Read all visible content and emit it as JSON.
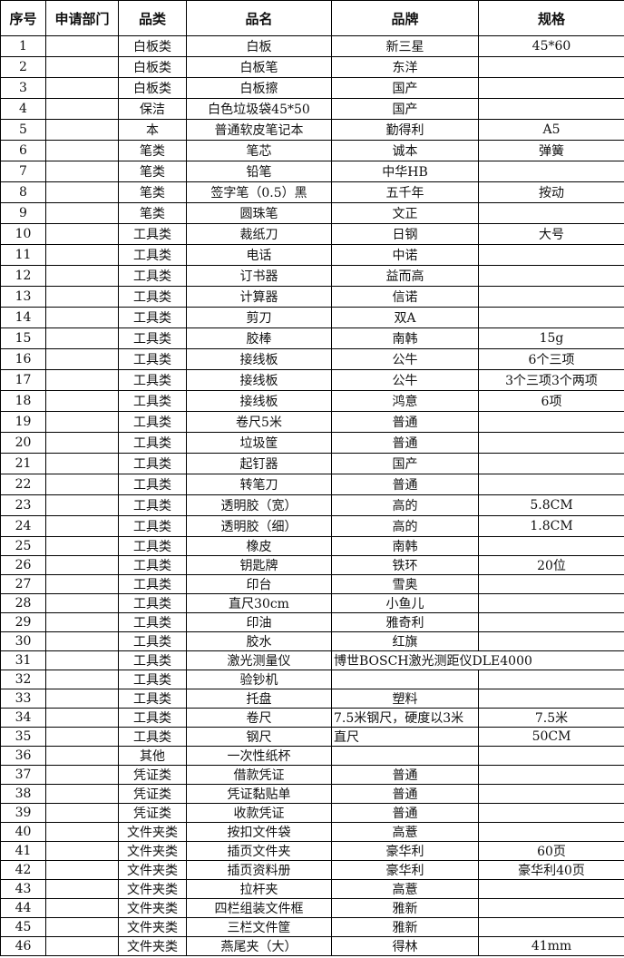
{
  "headers": [
    "序号",
    "申请部门",
    "品类",
    "品名",
    "品牌",
    "规格"
  ],
  "rows": [
    [
      "1",
      "",
      "白板类",
      "白板",
      "新三星",
      "45*60"
    ],
    [
      "2",
      "",
      "白板类",
      "白板笔",
      "东洋",
      ""
    ],
    [
      "3",
      "",
      "白板类",
      "白板擦",
      "国产",
      ""
    ],
    [
      "4",
      "",
      "保洁",
      "白色垃圾袋45*50",
      "国产",
      ""
    ],
    [
      "5",
      "",
      "本",
      "普通软皮笔记本",
      "勤得利",
      "A5"
    ],
    [
      "6",
      "",
      "笔类",
      "笔芯",
      "诚本",
      "弹簧"
    ],
    [
      "7",
      "",
      "笔类",
      "铅笔",
      "中华HB",
      ""
    ],
    [
      "8",
      "",
      "笔类",
      "签字笔（0.5）黑",
      "五千年",
      "按动"
    ],
    [
      "9",
      "",
      "笔类",
      "圆珠笔",
      "文正",
      ""
    ],
    [
      "10",
      "",
      "工具类",
      "裁纸刀",
      "日钢",
      "大号"
    ],
    [
      "11",
      "",
      "工具类",
      "电话",
      "中诺",
      ""
    ],
    [
      "12",
      "",
      "工具类",
      "订书器",
      "益而高",
      ""
    ],
    [
      "13",
      "",
      "工具类",
      "计算器",
      "信诺",
      ""
    ],
    [
      "14",
      "",
      "工具类",
      "剪刀",
      "双A",
      ""
    ],
    [
      "15",
      "",
      "工具类",
      "胶棒",
      "南韩",
      "15g"
    ],
    [
      "16",
      "",
      "工具类",
      "接线板",
      "公牛",
      "6个三项"
    ],
    [
      "17",
      "",
      "工具类",
      "接线板",
      "公牛",
      "3个三项3个两项"
    ],
    [
      "18",
      "",
      "工具类",
      "接线板",
      "鸿意",
      "6项"
    ],
    [
      "19",
      "",
      "工具类",
      "卷尺5米",
      "普通",
      ""
    ],
    [
      "20",
      "",
      "工具类",
      "垃圾筐",
      "普通",
      ""
    ],
    [
      "21",
      "",
      "工具类",
      "起钉器",
      "国产",
      ""
    ],
    [
      "22",
      "",
      "工具类",
      "转笔刀",
      "普通",
      ""
    ],
    [
      "23",
      "",
      "工具类",
      "透明胶（宽）",
      "高的",
      "5.8CM"
    ],
    [
      "24",
      "",
      "工具类",
      "透明胶（细）",
      "高的",
      "1.8CM"
    ],
    [
      "25",
      "",
      "工具类",
      "橡皮",
      "南韩",
      ""
    ],
    [
      "26",
      "",
      "工具类",
      "钥匙牌",
      "铁环",
      "20位"
    ],
    [
      "27",
      "",
      "工具类",
      "印台",
      "雪奥",
      ""
    ],
    [
      "28",
      "",
      "工具类",
      "直尺30cm",
      "小鱼儿",
      ""
    ],
    [
      "29",
      "",
      "工具类",
      "印油",
      "雅奇利",
      ""
    ],
    [
      "30",
      "",
      "工具类",
      "胶水",
      "红旗",
      ""
    ],
    [
      "31",
      "",
      "工具类",
      "激光测量仪",
      "博世BOSCH激光测距仪DLE4000",
      ""
    ],
    [
      "32",
      "",
      "工具类",
      "验钞机",
      "",
      ""
    ],
    [
      "33",
      "",
      "工具类",
      "托盘",
      "塑料",
      ""
    ],
    [
      "34",
      "",
      "工具类",
      "卷尺",
      "7.5米钢尺，硬度以3米",
      "7.5米"
    ],
    [
      "35",
      "",
      "工具类",
      "钢尺",
      "直尺",
      "50CM"
    ],
    [
      "36",
      "",
      "其他",
      "一次性纸杯",
      "",
      ""
    ],
    [
      "37",
      "",
      "凭证类",
      "借款凭证",
      "普通",
      ""
    ],
    [
      "38",
      "",
      "凭证类",
      "凭证黏贴单",
      "普通",
      ""
    ],
    [
      "39",
      "",
      "凭证类",
      "收款凭证",
      "普通",
      ""
    ],
    [
      "40",
      "",
      "文件夹类",
      "按扣文件袋",
      "高薏",
      ""
    ],
    [
      "41",
      "",
      "文件夹类",
      "插页文件夹",
      "豪华利",
      "60页"
    ],
    [
      "42",
      "",
      "文件夹类",
      "插页资料册",
      "豪华利",
      "豪华利40页"
    ],
    [
      "43",
      "",
      "文件夹类",
      "拉杆夹",
      "高薏",
      ""
    ],
    [
      "44",
      "",
      "文件夹类",
      "四栏组装文件框",
      "雅新",
      ""
    ],
    [
      "45",
      "",
      "文件夹类",
      "三栏文件筐",
      "雅新",
      ""
    ],
    [
      "46",
      "",
      "文件夹类",
      "燕尾夹（大）",
      "得林",
      "41mm"
    ]
  ]
}
